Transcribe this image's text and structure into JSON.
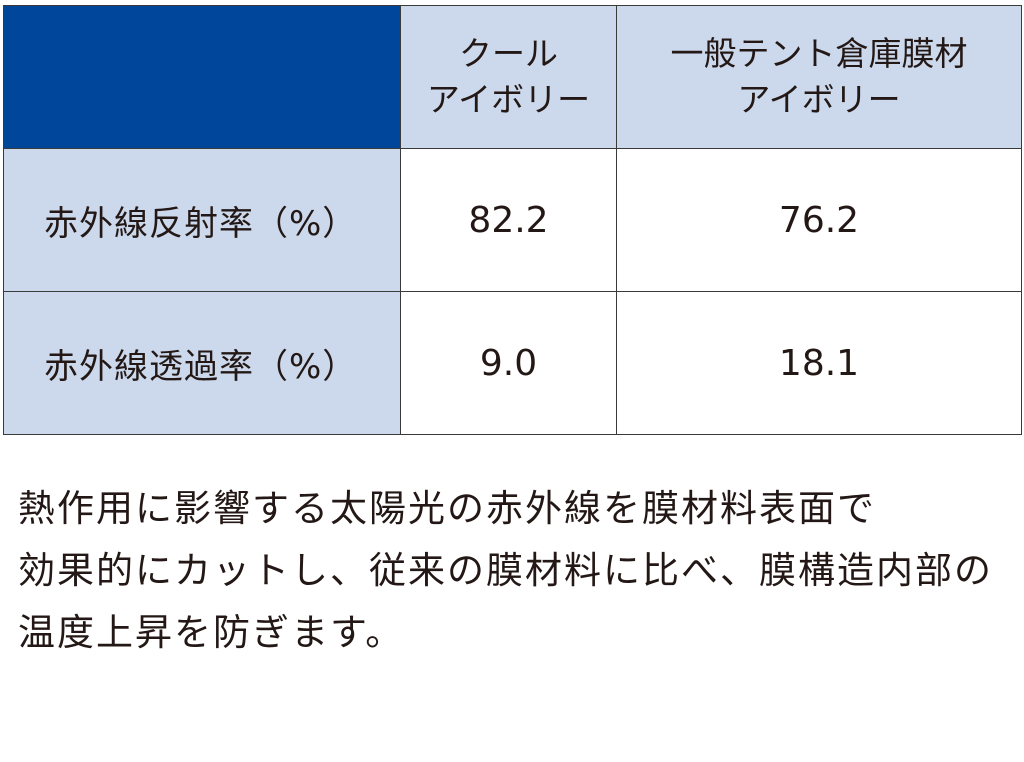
{
  "table": {
    "columns": [
      {
        "lines": [
          "クール",
          "アイボリー"
        ]
      },
      {
        "lines": [
          "一般テント倉庫膜材",
          "アイボリー"
        ]
      }
    ],
    "rows": [
      {
        "label": "赤外線反射率（%）",
        "values": [
          "82.2",
          "76.2"
        ]
      },
      {
        "label": "赤外線透過率（%）",
        "values": [
          "9.0",
          "18.1"
        ]
      }
    ],
    "colors": {
      "corner": "#00469b",
      "header_bg": "#ccd9ec",
      "label_bg": "#ccd9ec",
      "value_bg": "#ffffff",
      "border": "#3a3a3a"
    }
  },
  "description": {
    "lines": [
      "熱作用に影響する太陽光の赤外線を膜材料表面で",
      "効果的にカットし、従来の膜材料に比べ、膜構造内部の",
      "温度上昇を防ぎます。"
    ]
  }
}
